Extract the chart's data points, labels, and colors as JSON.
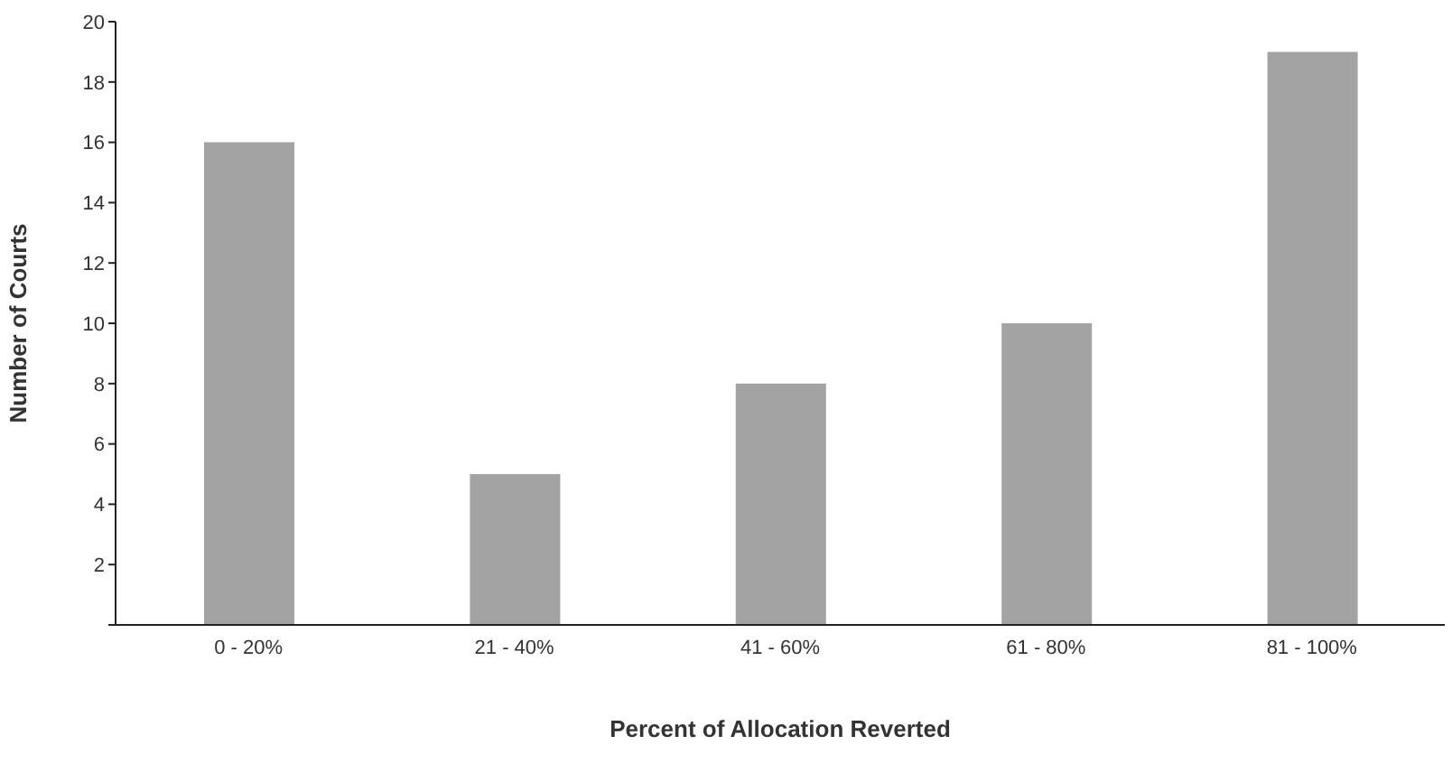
{
  "chart_data": {
    "type": "bar",
    "xlabel": "Percent of Allocation Reverted",
    "ylabel": "Number of Courts",
    "categories": [
      "0 - 20%",
      "21 - 40%",
      "41 - 60%",
      "61 - 80%",
      "81 - 100%"
    ],
    "values": [
      16,
      5,
      8,
      10,
      19
    ],
    "color": "#a3a3a3",
    "ylim": [
      0,
      20
    ],
    "yticks": [
      {
        "value": 0,
        "label": null
      },
      2,
      4,
      6,
      8,
      10,
      12,
      14,
      16,
      18,
      20
    ],
    "grid": false,
    "legend": false
  }
}
